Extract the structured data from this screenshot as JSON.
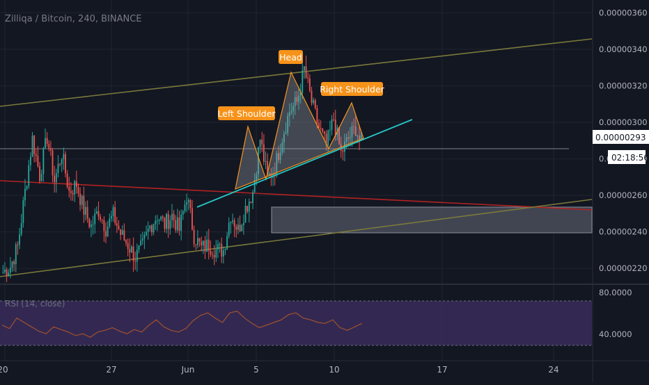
{
  "header": {
    "symbol": "Zilliqa / Bitcoin, 240, BINANCE"
  },
  "price_axis": {
    "labels": [
      "0.00000360",
      "0.00000340",
      "0.00000320",
      "0.00000300",
      "0.00000280",
      "0.00000260",
      "0.00000240",
      "0.00000220"
    ],
    "current_price": "0.00000293",
    "countdown": "02:18:56"
  },
  "rsi": {
    "label": "RSI (14, close)",
    "levels": [
      "80.0000",
      "40.0000"
    ]
  },
  "time_axis": {
    "labels": [
      "20",
      "27",
      "Jun",
      "5",
      "10",
      "17",
      "24"
    ]
  },
  "annotations": {
    "left_shoulder": "Left Shoulder",
    "head": "Head",
    "right_shoulder": "Right Shoulder"
  },
  "colors": {
    "background": "#131722",
    "up": "#26a69a",
    "down": "#ef5350",
    "label": "#f7931a",
    "channel": "#7a7a3a",
    "neckline": "#26c6c6",
    "red_line": "#b22222",
    "rsi_band": "#3a2c5a"
  },
  "chart_data": {
    "type": "candlestick",
    "title": "Zilliqa / Bitcoin, 240, BINANCE",
    "x_ticks": [
      "20",
      "27",
      "Jun",
      "5",
      "10",
      "17",
      "24"
    ],
    "y_ticks": [
      2.2e-06,
      2.4e-06,
      2.6e-06,
      2.8e-06,
      3e-06,
      3.2e-06,
      3.4e-06,
      3.6e-06
    ],
    "ylim": [
      2.117e-06,
      3.67e-06
    ],
    "last_price": 2.93e-06,
    "close_path": [
      2.18e-06,
      2.21e-06,
      2.32e-06,
      2.62e-06,
      2.91e-06,
      2.71e-06,
      2.92e-06,
      2.68e-06,
      2.83e-06,
      2.62e-06,
      2.66e-06,
      2.52e-06,
      2.43e-06,
      2.52e-06,
      2.42e-06,
      2.49e-06,
      2.39e-06,
      2.33e-06,
      2.26e-06,
      2.32e-06,
      2.43e-06,
      2.49e-06,
      2.44e-06,
      2.49e-06,
      2.41e-06,
      2.6e-06,
      2.38e-06,
      2.31e-06,
      2.33e-06,
      2.3e-06,
      2.3e-06,
      2.5e-06,
      2.41e-06,
      2.53e-06,
      2.62e-06,
      2.91e-06,
      2.69e-06,
      2.75e-06,
      2.92e-06,
      3.06e-06,
      3.11e-06,
      3.29e-06,
      3.11e-06,
      2.97e-06,
      2.87e-06,
      3.02e-06,
      2.83e-06,
      2.91e-06,
      2.97e-06,
      2.85e-06
    ],
    "rsi_path": [
      52,
      48,
      60,
      55,
      50,
      45,
      42,
      50,
      47,
      44,
      40,
      42,
      38,
      44,
      46,
      49,
      45,
      42,
      47,
      44,
      52,
      58,
      50,
      46,
      44,
      48,
      57,
      63,
      66,
      60,
      55,
      66,
      68,
      60,
      54,
      49,
      52,
      55,
      58,
      64,
      66,
      60,
      58,
      55,
      54,
      58,
      49,
      46,
      50,
      54
    ]
  }
}
